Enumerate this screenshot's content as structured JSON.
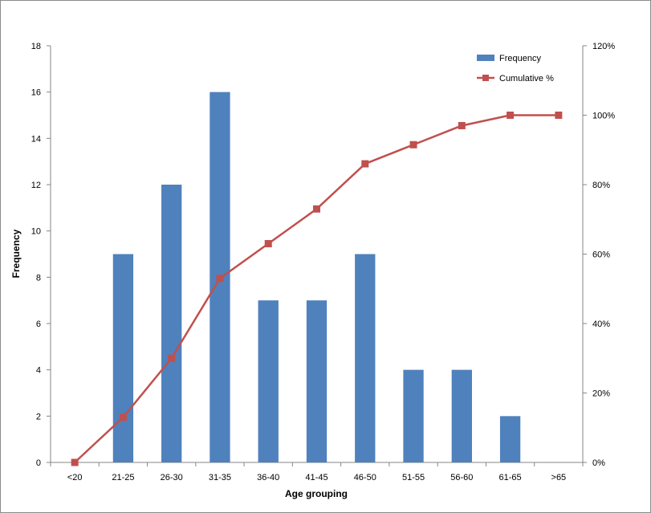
{
  "chart_data": {
    "type": "bar",
    "categories": [
      "<20",
      "21-25",
      "26-30",
      "31-35",
      "36-40",
      "41-45",
      "46-50",
      "51-55",
      "56-60",
      "61-65",
      ">65"
    ],
    "series": [
      {
        "name": "Frequency",
        "type": "bar",
        "axis": "left",
        "color": "#4f81bd",
        "values": [
          0,
          9,
          12,
          16,
          7,
          7,
          9,
          4,
          4,
          2,
          0
        ]
      },
      {
        "name": "Cumulative %",
        "type": "line",
        "axis": "right",
        "color": "#c0504d",
        "marker": "square",
        "values": [
          0,
          13,
          30,
          53,
          63,
          73,
          86,
          91.5,
          97,
          100,
          100
        ]
      }
    ],
    "xlabel": "Age grouping",
    "ylabel": "Frequency",
    "ylim": [
      0,
      18
    ],
    "y_ticks": [
      "0",
      "2",
      "4",
      "6",
      "8",
      "10",
      "12",
      "14",
      "16",
      "18"
    ],
    "y2lim": [
      0,
      120
    ],
    "y2_ticks": [
      "0%",
      "20%",
      "40%",
      "60%",
      "80%",
      "100%",
      "120%"
    ],
    "grid": false,
    "legend_position": "top-right"
  }
}
